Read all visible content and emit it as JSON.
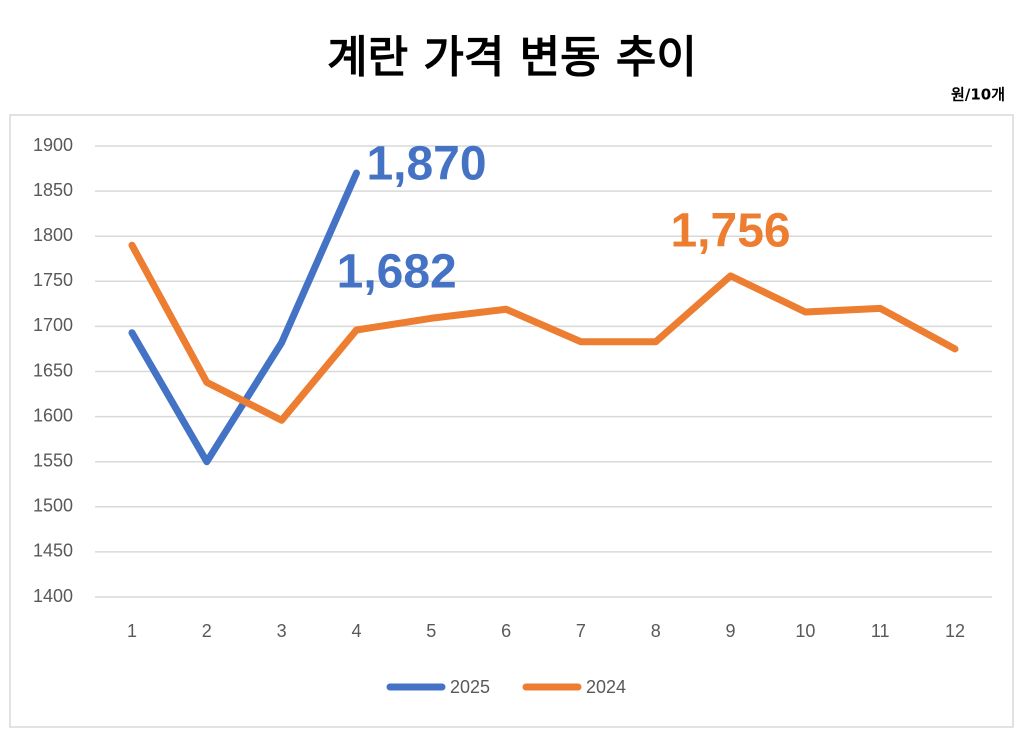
{
  "chart_data": {
    "type": "line",
    "title": "계란 가격 변동 추이",
    "unit": "원/10개",
    "categories": [
      1,
      2,
      3,
      4,
      5,
      6,
      7,
      8,
      9,
      10,
      11,
      12
    ],
    "series": [
      {
        "name": "2025",
        "color": "#4472c4",
        "values": [
          1693,
          1550,
          1682,
          1870,
          null,
          null,
          null,
          null,
          null,
          null,
          null,
          null
        ],
        "value_labels": [
          null,
          null,
          "1,682",
          "1,870",
          null,
          null,
          null,
          null,
          null,
          null,
          null,
          null
        ]
      },
      {
        "name": "2024",
        "color": "#ed7d31",
        "values": [
          1790,
          1638,
          1596,
          1696,
          1709,
          1719,
          1683,
          1683,
          1756,
          1716,
          1720,
          1675
        ],
        "value_labels": [
          null,
          null,
          null,
          null,
          null,
          null,
          null,
          null,
          "1,756",
          null,
          null,
          null
        ]
      }
    ],
    "ylim": [
      1400,
      1900
    ],
    "yticks": [
      1400,
      1450,
      1500,
      1550,
      1600,
      1650,
      1700,
      1750,
      1800,
      1850,
      1900
    ],
    "grid": true,
    "legend": "bottom"
  }
}
